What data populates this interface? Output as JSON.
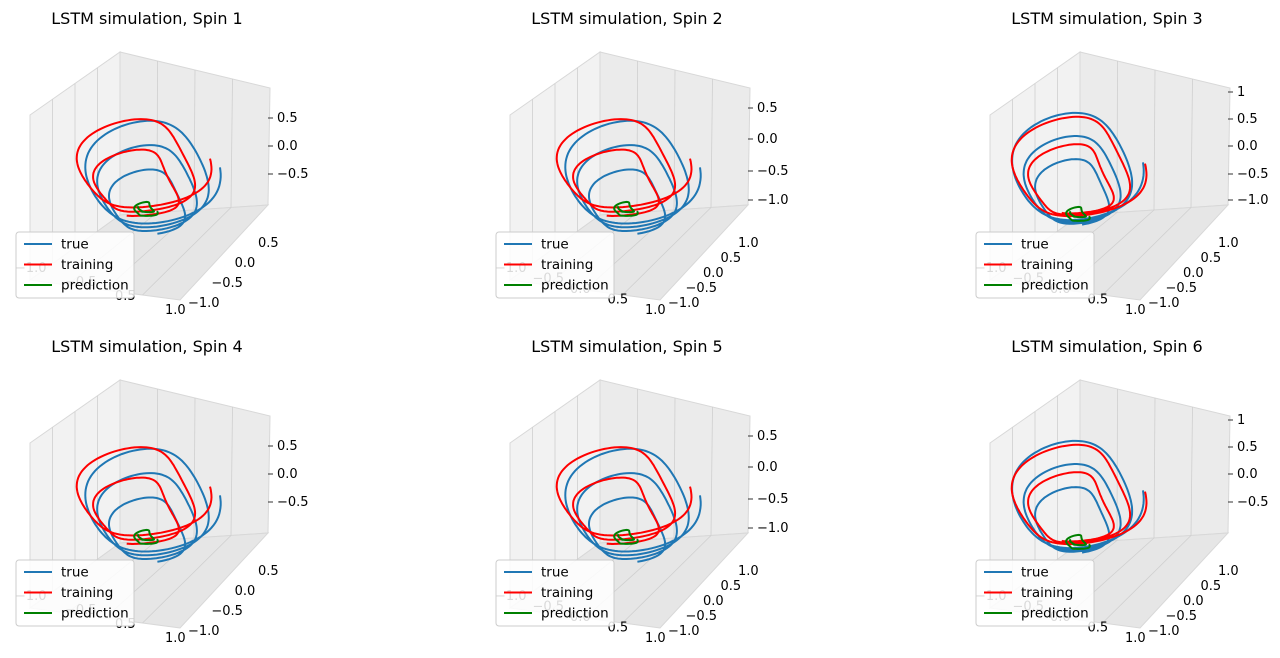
{
  "figure": {
    "legend_entries": [
      "true",
      "training",
      "prediction"
    ]
  },
  "chart_data": [
    {
      "type": "line",
      "title": "LSTM simulation, Spin 1",
      "z_ticks": [
        "0.5",
        "0.0",
        "−0.5"
      ],
      "y_ticks": [
        "0.5",
        "0.0",
        "−0.5",
        "−1.0"
      ],
      "x_ticks": [
        "−1.0",
        "−0.5",
        "0.5",
        "1.0"
      ],
      "series": [
        {
          "name": "true",
          "color": "#1f77b4"
        },
        {
          "name": "training",
          "color": "#ff0000"
        },
        {
          "name": "prediction",
          "color": "#008000"
        }
      ],
      "legend": "lower-left",
      "grid": true
    },
    {
      "type": "line",
      "title": "LSTM simulation, Spin 2",
      "z_ticks": [
        "0.5",
        "0.0",
        "−0.5",
        "−1.0"
      ],
      "y_ticks": [
        "1.0",
        "0.5",
        "0.0",
        "−0.5",
        "−1.0"
      ],
      "x_ticks": [
        "−1.0",
        "−0.5",
        "0.0",
        "0.5",
        "1.0"
      ],
      "series": [
        {
          "name": "true",
          "color": "#1f77b4"
        },
        {
          "name": "training",
          "color": "#ff0000"
        },
        {
          "name": "prediction",
          "color": "#008000"
        }
      ],
      "legend": "lower-left",
      "grid": true
    },
    {
      "type": "line",
      "title": "LSTM simulation, Spin 3",
      "z_ticks": [
        "1",
        "0.5",
        "0.0",
        "−0.5",
        "−1.0"
      ],
      "y_ticks": [
        "1.0",
        "0.5",
        "0.0",
        "−0.5",
        "−1.0"
      ],
      "x_ticks": [
        "−1.0",
        "−0.5",
        "0.0",
        "0.5",
        "1.0"
      ],
      "series": [
        {
          "name": "true",
          "color": "#1f77b4"
        },
        {
          "name": "training",
          "color": "#ff0000"
        },
        {
          "name": "prediction",
          "color": "#008000"
        }
      ],
      "legend": "lower-left",
      "grid": true
    },
    {
      "type": "line",
      "title": "LSTM simulation, Spin 4",
      "z_ticks": [
        "0.5",
        "0.0",
        "−0.5"
      ],
      "y_ticks": [
        "0.5",
        "0.0",
        "−0.5",
        "−1.0"
      ],
      "x_ticks": [
        "−1.0",
        "−0.5",
        "0.5",
        "1.0"
      ],
      "series": [
        {
          "name": "true",
          "color": "#1f77b4"
        },
        {
          "name": "training",
          "color": "#ff0000"
        },
        {
          "name": "prediction",
          "color": "#008000"
        }
      ],
      "legend": "lower-left",
      "grid": true
    },
    {
      "type": "line",
      "title": "LSTM simulation, Spin 5",
      "z_ticks": [
        "0.5",
        "0.0",
        "−0.5",
        "−1.0"
      ],
      "y_ticks": [
        "1.0",
        "0.5",
        "0.0",
        "−0.5",
        "−1.0"
      ],
      "x_ticks": [
        "−1.0",
        "−0.5",
        "0.0",
        "0.5",
        "1.0"
      ],
      "series": [
        {
          "name": "true",
          "color": "#1f77b4"
        },
        {
          "name": "training",
          "color": "#ff0000"
        },
        {
          "name": "prediction",
          "color": "#008000"
        }
      ],
      "legend": "lower-left",
      "grid": true
    },
    {
      "type": "line",
      "title": "LSTM simulation, Spin 6",
      "z_ticks": [
        "1",
        "0.5",
        "0.0",
        "−0.5"
      ],
      "y_ticks": [
        "1.0",
        "0.5",
        "0.0",
        "−0.5",
        "−1.0"
      ],
      "x_ticks": [
        "−1.0",
        "−0.5",
        "0.0",
        "0.5",
        "1.0"
      ],
      "series": [
        {
          "name": "true",
          "color": "#1f77b4"
        },
        {
          "name": "training",
          "color": "#ff0000"
        },
        {
          "name": "prediction",
          "color": "#008000"
        }
      ],
      "legend": "lower-left",
      "grid": true
    }
  ]
}
